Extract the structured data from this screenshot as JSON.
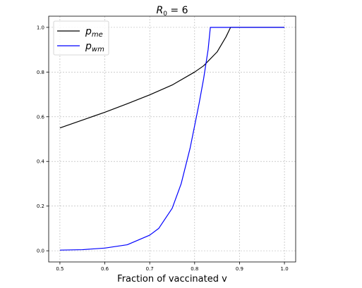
{
  "chart_data": {
    "type": "line",
    "title_main": "R",
    "title_sub": "0",
    "title_rest": " = 6",
    "xlabel": "Fraction of vaccinated v",
    "ylabel": "",
    "xlim": [
      0.475,
      1.025
    ],
    "ylim": [
      -0.05,
      1.05
    ],
    "x_ticks": [
      "0.5",
      "0.6",
      "0.7",
      "0.8",
      "0.9",
      "1.0"
    ],
    "y_ticks": [
      "0.0",
      "0.2",
      "0.4",
      "0.6",
      "0.8",
      "1.0"
    ],
    "grid": true,
    "legend_position": "top-left",
    "series": [
      {
        "name_main": "p",
        "name_sub": "me",
        "color": "#000000",
        "x": [
          0.5,
          0.55,
          0.6,
          0.65,
          0.7,
          0.75,
          0.8,
          0.82,
          0.85,
          0.87,
          0.88,
          0.9,
          0.95,
          1.0
        ],
        "y": [
          0.55,
          0.585,
          0.62,
          0.658,
          0.698,
          0.742,
          0.8,
          0.828,
          0.89,
          0.958,
          1.0,
          1.0,
          1.0,
          1.0
        ]
      },
      {
        "name_main": "p",
        "name_sub": "wm",
        "color": "#0000ff",
        "x": [
          0.5,
          0.55,
          0.6,
          0.65,
          0.7,
          0.72,
          0.75,
          0.77,
          0.79,
          0.8,
          0.81,
          0.82,
          0.83,
          0.835,
          0.85,
          0.9,
          0.95,
          1.0
        ],
        "y": [
          0.003,
          0.005,
          0.012,
          0.027,
          0.07,
          0.1,
          0.19,
          0.3,
          0.46,
          0.56,
          0.66,
          0.77,
          0.9,
          1.0,
          1.0,
          1.0,
          1.0,
          1.0
        ]
      }
    ]
  }
}
